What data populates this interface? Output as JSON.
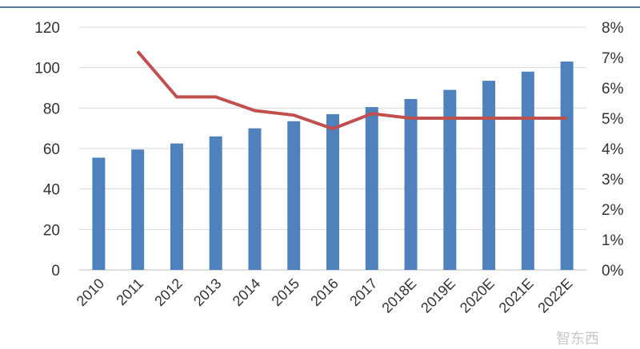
{
  "chart_data": {
    "type": "bar",
    "title": "",
    "xlabel": "",
    "ylabel": "",
    "categories": [
      "2010",
      "2011",
      "2012",
      "2013",
      "2014",
      "2015",
      "2016",
      "2017",
      "2018E",
      "2019E",
      "2020E",
      "2021E",
      "2022E"
    ],
    "series": [
      {
        "type": "bar",
        "axis": "left",
        "values": [
          55.5,
          59.5,
          62.5,
          66,
          70,
          73.5,
          77,
          80.5,
          84.5,
          89,
          93.5,
          98,
          103
        ],
        "color": "#4f81bd"
      },
      {
        "type": "line",
        "axis": "right",
        "values": [
          null,
          7.2,
          5.7,
          5.7,
          5.25,
          5.1,
          4.65,
          5.15,
          5.0,
          5.0,
          5.0,
          5.0,
          5.0
        ],
        "color": "#c0504d"
      }
    ],
    "ylim": [
      0,
      120
    ],
    "yticks": [
      "0",
      "20",
      "40",
      "60",
      "80",
      "100",
      "120"
    ],
    "y2lim": [
      0,
      8
    ],
    "y2ticks": [
      "0%",
      "1%",
      "2%",
      "3%",
      "4%",
      "5%",
      "6%",
      "7%",
      "8%"
    ],
    "grid": true,
    "legend": "bottom"
  },
  "watermark": {
    "text": "智东西",
    "color": "#c8c8c8"
  },
  "colors": {
    "axis": "#bfbfbf",
    "grid": "#d9d9d9",
    "top_rule": "#1f4e79"
  }
}
